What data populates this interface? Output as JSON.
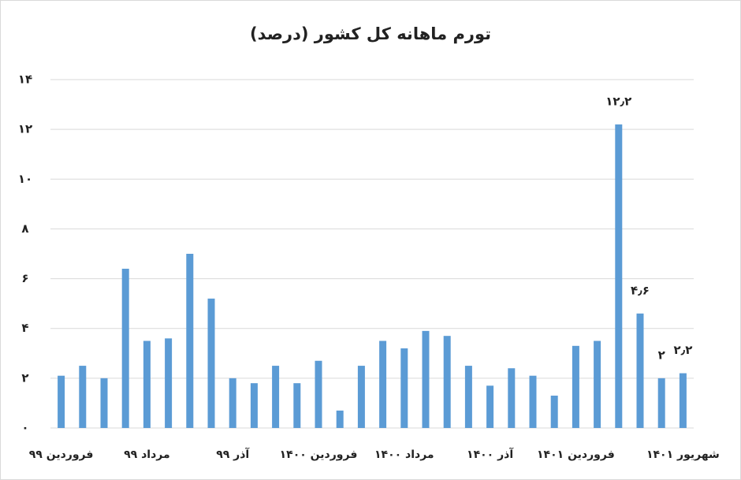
{
  "chart_data": {
    "type": "bar",
    "title": "تورم ماهانه کل کشور (درصد)",
    "categories": [
      "فروردین ۹۹",
      null,
      null,
      null,
      "مرداد ۹۹",
      null,
      null,
      null,
      "آذر ۹۹",
      null,
      null,
      null,
      "فروردین ۱۴۰۰",
      null,
      null,
      null,
      "مرداد ۱۴۰۰",
      null,
      null,
      null,
      "آذر ۱۴۰۰",
      null,
      null,
      null,
      "فروردین ۱۴۰۱",
      null,
      null,
      null,
      null,
      "شهریور ۱۴۰۱"
    ],
    "values": [
      2.1,
      2.5,
      2.0,
      6.4,
      3.5,
      3.6,
      7.0,
      5.2,
      2.0,
      1.8,
      2.5,
      1.8,
      2.7,
      0.7,
      2.5,
      3.5,
      3.2,
      3.9,
      3.7,
      2.5,
      1.7,
      2.4,
      2.1,
      1.3,
      3.3,
      3.5,
      12.2,
      4.6,
      2.0,
      2.2
    ],
    "value_labels": [
      null,
      null,
      null,
      null,
      null,
      null,
      null,
      null,
      null,
      null,
      null,
      null,
      null,
      null,
      null,
      null,
      null,
      null,
      null,
      null,
      null,
      null,
      null,
      null,
      null,
      null,
      "۱۲٫۲",
      "۴٫۶",
      "۲",
      "۲٫۲"
    ],
    "color": "#5b9bd5",
    "ylim": [
      0,
      14
    ],
    "yticks": [
      {
        "value": 0,
        "label": "۰"
      },
      {
        "value": 2,
        "label": "۲"
      },
      {
        "value": 4,
        "label": "۴"
      },
      {
        "value": 6,
        "label": "۶"
      },
      {
        "value": 8,
        "label": "۸"
      },
      {
        "value": 10,
        "label": "۱۰"
      },
      {
        "value": 12,
        "label": "۱۲"
      },
      {
        "value": 14,
        "label": "۱۴"
      }
    ],
    "grid": true
  }
}
